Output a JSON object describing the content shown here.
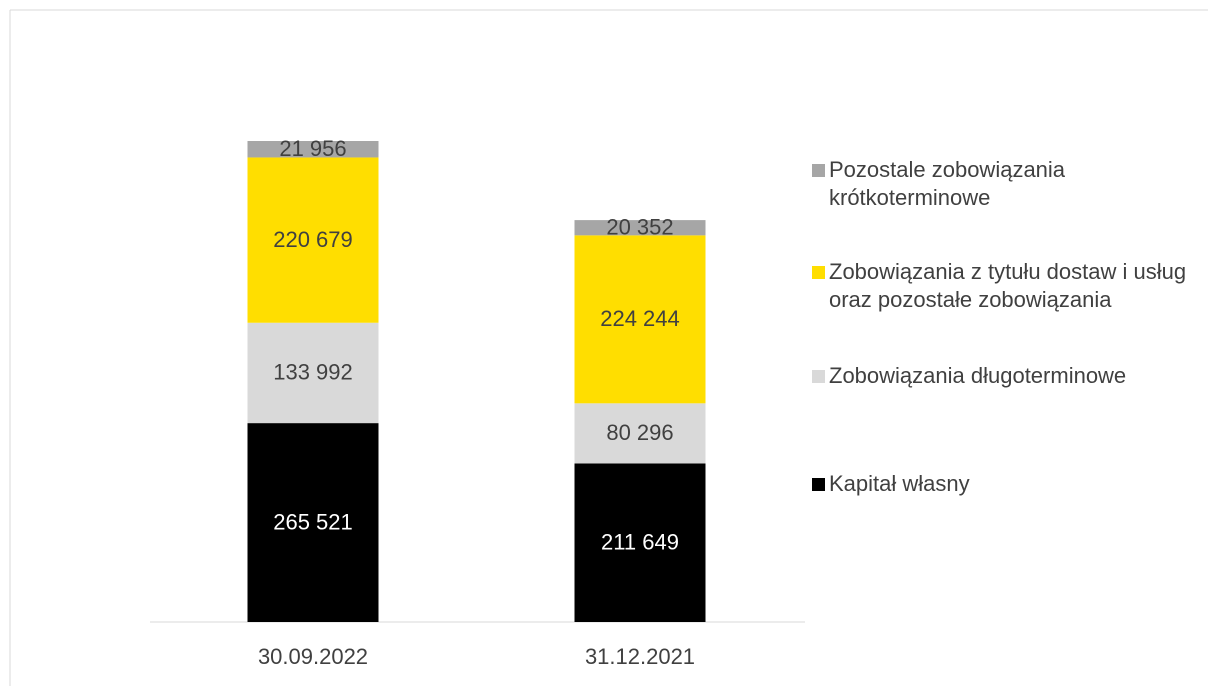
{
  "chart_data": {
    "type": "bar",
    "stacked": true,
    "categories": [
      "30.09.2022",
      "31.12.2021"
    ],
    "series": [
      {
        "name": "Kapitał własny",
        "color": "#000000",
        "values": [
          265521,
          211649
        ],
        "value_labels": [
          "265 521",
          "211 649"
        ]
      },
      {
        "name": "Zobowiązania długoterminowe",
        "color": "#d9d9d9",
        "values": [
          133992,
          80296
        ],
        "value_labels": [
          "133 992",
          "80 296"
        ]
      },
      {
        "name": "Zobowiązania z tytułu dostaw i usług oraz pozostałe zobowiązania",
        "color": "#ffde00",
        "values": [
          220679,
          224244
        ],
        "value_labels": [
          "220 679",
          "224 244"
        ]
      },
      {
        "name": "Pozostale zobowiązania krótkoterminowe",
        "color": "#a6a6a6",
        "values": [
          21956,
          20352
        ],
        "value_labels": [
          "21 956",
          "20 352"
        ]
      }
    ]
  }
}
